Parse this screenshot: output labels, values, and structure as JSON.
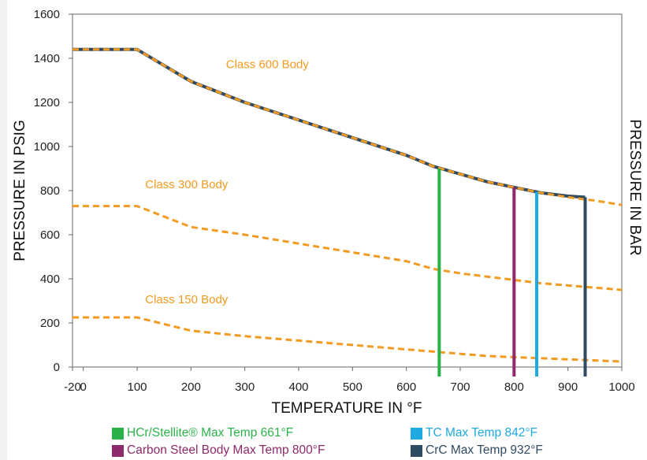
{
  "chart_data": {
    "type": "line",
    "title": "",
    "xlabel": "TEMPERATURE IN °F",
    "ylabel": "PRESSURE IN PSIG",
    "ylabel_right": "PRESSURE IN BAR",
    "xlim": [
      -20,
      1000
    ],
    "ylim": [
      0,
      1600
    ],
    "x_ticks": [
      -20,
      0,
      100,
      200,
      300,
      400,
      500,
      600,
      700,
      800,
      900,
      1000
    ],
    "y_ticks": [
      0,
      200,
      400,
      600,
      800,
      1000,
      1200,
      1400,
      1600
    ],
    "series": [
      {
        "name": "Class 600 Body",
        "style": "dashed",
        "color": "#f39a21",
        "x": [
          -20,
          100,
          200,
          300,
          400,
          500,
          600,
          650,
          700,
          750,
          800,
          850,
          900,
          950,
          1000
        ],
        "y": [
          1440,
          1440,
          1295,
          1200,
          1120,
          1040,
          960,
          910,
          875,
          840,
          815,
          790,
          770,
          755,
          735
        ]
      },
      {
        "name": "Class 300 Body",
        "style": "dashed",
        "color": "#f39a21",
        "x": [
          -20,
          100,
          200,
          300,
          400,
          500,
          600,
          650,
          700,
          750,
          800,
          850,
          900,
          950,
          1000
        ],
        "y": [
          730,
          730,
          635,
          600,
          560,
          520,
          480,
          445,
          425,
          410,
          395,
          380,
          370,
          360,
          350
        ]
      },
      {
        "name": "Class 150 Body",
        "style": "dashed",
        "color": "#f39a21",
        "x": [
          -20,
          100,
          200,
          300,
          400,
          500,
          600,
          650,
          700,
          750,
          800,
          850,
          900,
          950,
          1000
        ],
        "y": [
          225,
          225,
          165,
          140,
          120,
          100,
          80,
          70,
          60,
          50,
          45,
          40,
          35,
          30,
          25
        ]
      },
      {
        "name": "",
        "style": "solid",
        "color": "#2f4a63",
        "x": [
          -20,
          100,
          200,
          300,
          400,
          500,
          600,
          650,
          700,
          750,
          800,
          850,
          900,
          932
        ],
        "y": [
          1440,
          1440,
          1295,
          1200,
          1120,
          1040,
          960,
          910,
          875,
          840,
          815,
          790,
          775,
          770
        ]
      }
    ],
    "series_labels": [
      {
        "text": "Class 600 Body",
        "x": 265,
        "y": 1355
      },
      {
        "text": "Class 300 Body",
        "x": 115,
        "y": 810
      },
      {
        "text": "Class 150 Body",
        "x": 115,
        "y": 290
      }
    ],
    "max_temp_lines": [
      {
        "name": "HCr/Stellite® Max Temp 661°F",
        "x": 661,
        "y_top": 900,
        "color": "#2ab24a"
      },
      {
        "name": "Carbon Steel Body Max Temp 800°F",
        "x": 800,
        "y_top": 815,
        "color": "#8e2a6b"
      },
      {
        "name": "TC Max Temp 842°F",
        "x": 842,
        "y_top": 795,
        "color": "#1fa9e1"
      },
      {
        "name": "CrC Max Temp 932°F",
        "x": 932,
        "y_top": 770,
        "color": "#2f4a63"
      }
    ],
    "grid": false,
    "legend_position": "bottom"
  },
  "legend": {
    "items": [
      {
        "label": "HCr/Stellite® Max Temp 661°F",
        "color": "#2ab24a"
      },
      {
        "label": "Carbon Steel Body Max Temp 800°F",
        "color": "#8e2a6b"
      },
      {
        "label": "TC Max Temp 842°F",
        "color": "#1fa9e1"
      },
      {
        "label": "CrC Max Temp 932°F",
        "color": "#2f4a63"
      }
    ]
  }
}
